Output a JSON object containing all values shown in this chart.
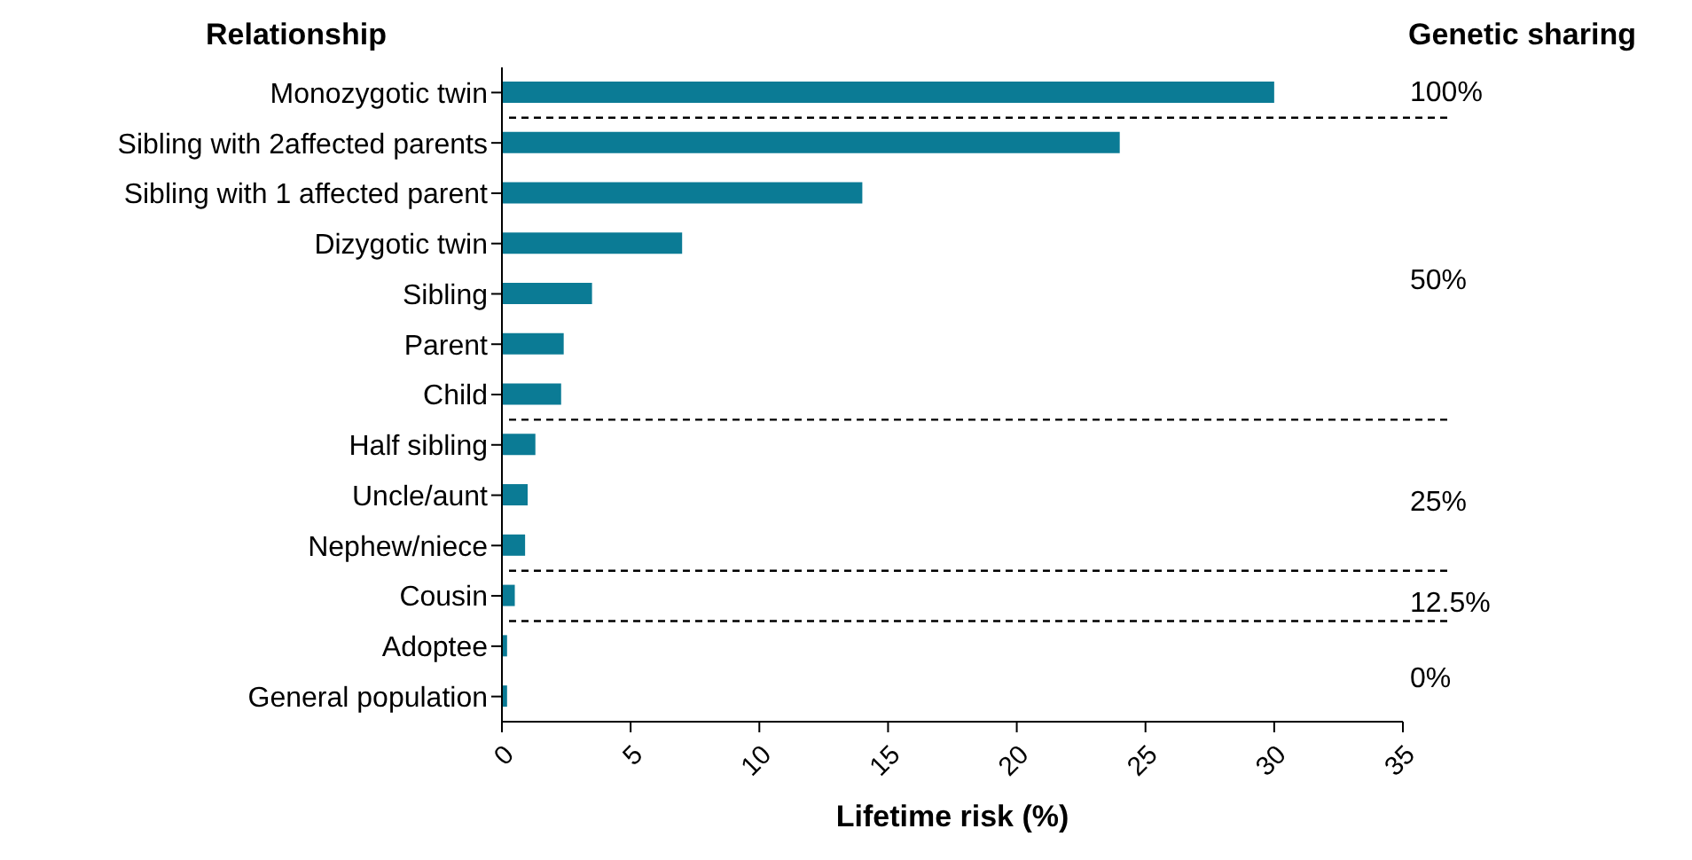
{
  "chart_data": {
    "type": "bar",
    "orientation": "horizontal",
    "ylabel": "Relationship",
    "xlabel": "Lifetime risk (%)",
    "annotations": [
      "Genetic sharing",
      "100%",
      "50%",
      "25%",
      "12.5%",
      "0%"
    ],
    "categories": [
      "Monozygotic twin",
      "Sibling with 2affected parents",
      "Sibling with 1 affected parent",
      "Dizygotic twin",
      "Sibling",
      "Parent",
      "Child",
      "Half sibling",
      "Uncle/aunt",
      "Nephew/niece",
      "Cousin",
      "Adoptee",
      "General population"
    ],
    "values": [
      30,
      24,
      14,
      7,
      3.5,
      2.4,
      2.3,
      1.3,
      1.0,
      0.9,
      0.5,
      0.2,
      0.2
    ],
    "color": "#0b7b95",
    "xlim": [
      0,
      35
    ],
    "xticks": [
      0,
      5,
      10,
      15,
      20,
      25,
      30,
      35
    ],
    "grid": false,
    "legend": false,
    "line_style": "dashed"
  }
}
